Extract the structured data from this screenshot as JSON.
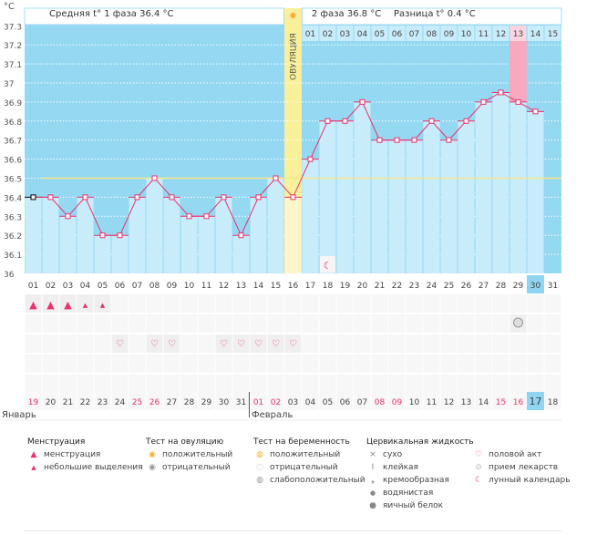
{
  "header": {
    "unit": "°C",
    "phase1": "Средняя t° 1 фаза  36.4 °C",
    "phase2": "2 фаза  36.8 °C",
    "difference": "Разница t° 0.4 °C",
    "ovulation_label": "ОВУЛЯЦИЯ"
  },
  "colors": {
    "chart_bg": "#94d8f2",
    "bar": "#c9ecfb",
    "line": "#e8336c",
    "cover_line": "#f5e88a",
    "ovulation": "#faf09a",
    "highlight": "#8fd4f0",
    "pink_bar": "#f7a9c0",
    "weekend": "#e8336c"
  },
  "chart_data": {
    "type": "line",
    "ylim": [
      36,
      37.3
    ],
    "yticks": [
      "37.3",
      "37.2",
      "37.1",
      "37",
      "36.9",
      "36.8",
      "36.7",
      "36.6",
      "36.5",
      "36.4",
      "36.3",
      "36.2",
      "36.1",
      "36"
    ],
    "cycle_days": [
      "01",
      "02",
      "03",
      "04",
      "05",
      "06",
      "07",
      "08",
      "09",
      "10",
      "11",
      "12",
      "13",
      "14",
      "15",
      "16",
      "17",
      "18",
      "19",
      "20",
      "21",
      "22",
      "23",
      "24",
      "25",
      "26",
      "27",
      "28",
      "29",
      "30",
      "31"
    ],
    "temperatures": [
      36.4,
      36.4,
      36.3,
      36.4,
      36.2,
      36.2,
      36.4,
      36.5,
      36.4,
      36.3,
      36.3,
      36.4,
      36.2,
      36.4,
      36.5,
      36.4,
      36.6,
      36.8,
      36.8,
      36.9,
      36.7,
      36.7,
      36.7,
      36.8,
      36.7,
      36.8,
      36.9,
      36.95,
      36.9,
      36.85,
      null
    ],
    "cover_line": 36.5,
    "ovulation_day": 16,
    "current_day": 30,
    "post_ovulation_days": [
      "01",
      "02",
      "03",
      "04",
      "05",
      "06",
      "07",
      "08",
      "09",
      "10",
      "11",
      "12",
      "13",
      "14",
      "15"
    ],
    "highlighted_post_day": "13",
    "grid": true
  },
  "events": {
    "menstruation": [
      {
        "day": 1,
        "type": "heavy"
      },
      {
        "day": 2,
        "type": "heavy"
      },
      {
        "day": 3,
        "type": "heavy"
      },
      {
        "day": 4,
        "type": "light"
      },
      {
        "day": 5,
        "type": "light"
      }
    ],
    "pregnancy_test": [
      {
        "day": 29,
        "type": "weak-positive"
      }
    ],
    "intercourse": [
      6,
      8,
      9,
      12,
      13,
      14,
      15,
      16
    ],
    "moon": [
      18
    ]
  },
  "calendar": {
    "dates": [
      "19",
      "20",
      "21",
      "22",
      "23",
      "24",
      "25",
      "26",
      "27",
      "28",
      "29",
      "30",
      "31",
      "01",
      "02",
      "03",
      "04",
      "05",
      "06",
      "07",
      "08",
      "09",
      "10",
      "11",
      "12",
      "13",
      "14",
      "15",
      "16",
      "17",
      "18"
    ],
    "weekends": [
      "19",
      "25",
      "26",
      "01",
      "02",
      "08",
      "09",
      "15",
      "16"
    ],
    "today": "17",
    "months": [
      "Январь",
      "Февраль"
    ]
  },
  "legend": {
    "menstruation": {
      "title": "Менструация",
      "items": [
        "менструация",
        "небольшие выделения"
      ]
    },
    "ovulation_test": {
      "title": "Тест на овуляцию",
      "items": [
        "положительный",
        "отрицательный"
      ]
    },
    "pregnancy_test": {
      "title": "Тест на беременность",
      "items": [
        "положительный",
        "отрицательный",
        "слабоположительный"
      ]
    },
    "cervical": {
      "title": "Цервикальная жидкость",
      "items": [
        "сухо",
        "клейкая",
        "кремообразная",
        "водянистая",
        "яичный белок"
      ]
    },
    "other": {
      "items": [
        "половой акт",
        "прием лекарств",
        "лунный календарь"
      ]
    }
  }
}
